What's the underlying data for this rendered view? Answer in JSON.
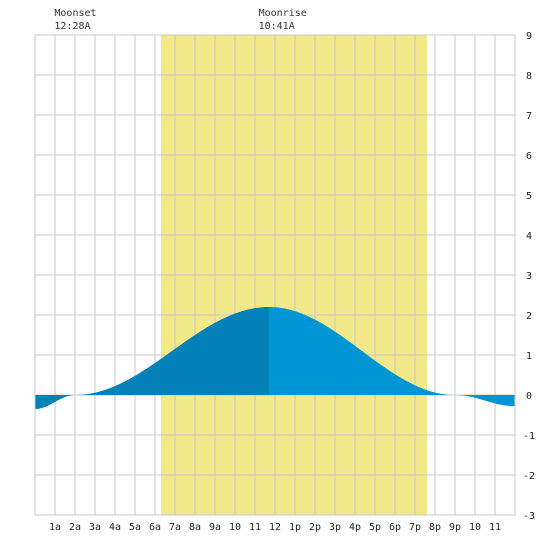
{
  "chart_data": {
    "type": "area",
    "title": "",
    "xlabel": "",
    "ylabel": "",
    "x_ticks": [
      "1a",
      "2a",
      "3a",
      "4a",
      "5a",
      "6a",
      "7a",
      "8a",
      "9a",
      "10",
      "11",
      "12",
      "1p",
      "2p",
      "3p",
      "4p",
      "5p",
      "6p",
      "7p",
      "8p",
      "9p",
      "10",
      "11"
    ],
    "x_range_hours": [
      0,
      24
    ],
    "ylim": [
      -3,
      9
    ],
    "y_ticks": [
      9,
      8,
      7,
      6,
      5,
      4,
      3,
      2,
      1,
      0,
      -1,
      -2,
      -3
    ],
    "grid": true,
    "daylight_hours": [
      6.3,
      19.6
    ],
    "moon_events": [
      {
        "label": "Moonset",
        "time": "12:28A",
        "hour": 0.47
      },
      {
        "label": "Moonrise",
        "time": "10:41A",
        "hour": 10.68
      }
    ],
    "series": [
      {
        "x": [
          0,
          2,
          11.7,
          21,
          24
        ],
        "y": [
          -0.35,
          0.0,
          2.2,
          0.0,
          -0.28
        ]
      }
    ],
    "colors": {
      "daylight": "#f2e98a",
      "tide_before_peak": "#0280b8",
      "tide_after_peak": "#0295d6",
      "grid": "#c8c8c8"
    }
  }
}
